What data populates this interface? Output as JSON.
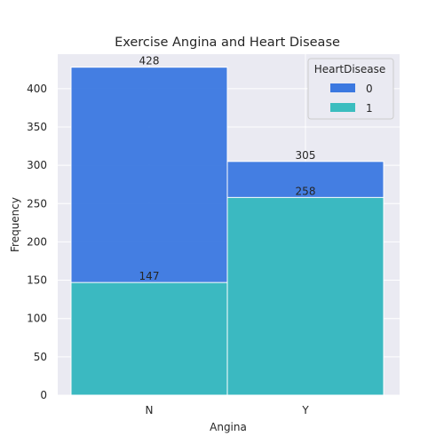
{
  "chart_data": {
    "type": "bar",
    "stacked_overlay": true,
    "title": "Exercise Angina and Heart Disease",
    "xlabel": "Angina",
    "ylabel": "Frequency",
    "categories": [
      "N",
      "Y"
    ],
    "ylim": [
      0,
      445
    ],
    "yticks": [
      0,
      50,
      100,
      150,
      200,
      250,
      300,
      350,
      400
    ],
    "grid": true,
    "series": [
      {
        "name": "0",
        "values": [
          428,
          305
        ],
        "color": "#3b78e0"
      },
      {
        "name": "1",
        "values": [
          147,
          258
        ],
        "color": "#3bbdbf"
      }
    ],
    "legend": {
      "title": "HeartDisease",
      "placement": "top-right"
    },
    "colors": {
      "background": "#eaeaf2",
      "grid": "#ffffff",
      "edge": "#ffffff"
    }
  }
}
